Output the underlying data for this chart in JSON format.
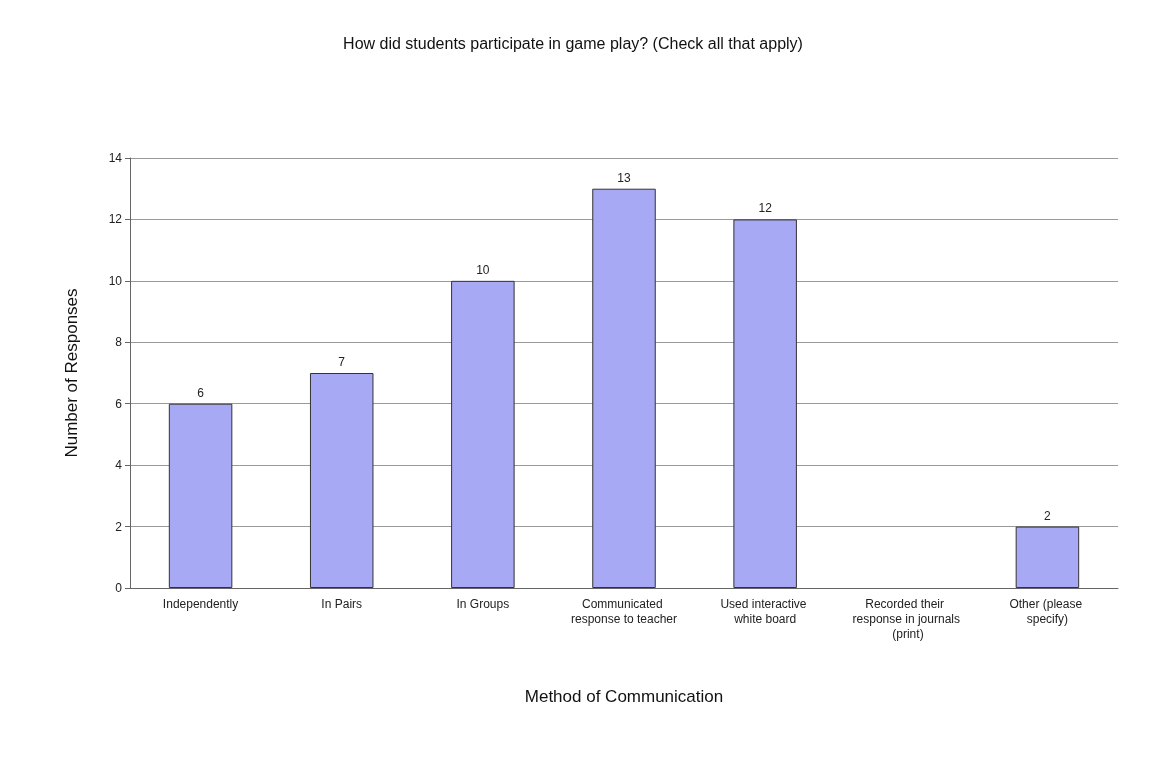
{
  "chart_data": {
    "type": "bar",
    "title": "How did students participate in game play? (Check all that apply)",
    "xlabel": "Method of Communication",
    "ylabel": "Number of Responses",
    "categories": [
      "Independently",
      "In Pairs",
      "In Groups",
      "Communicated response to teacher",
      "Used interactive white board",
      "Recorded their response in journals (print)",
      "Other (please specify)"
    ],
    "values": [
      6,
      7,
      10,
      13,
      12,
      0,
      2
    ],
    "value_labels": [
      "6",
      "7",
      "10",
      "13",
      "12",
      null,
      "2"
    ],
    "color": "#a8a9f5",
    "ylim": [
      0,
      14
    ],
    "yticks": [
      0,
      2,
      4,
      6,
      8,
      10,
      12,
      14
    ],
    "grid": "y"
  }
}
